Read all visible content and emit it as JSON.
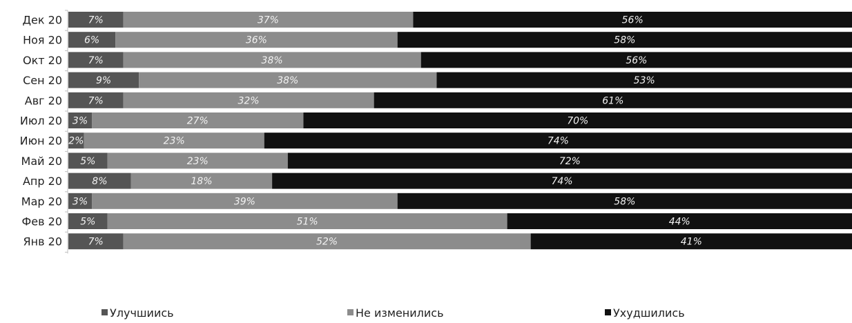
{
  "chart_data": {
    "type": "bar",
    "orientation": "horizontal",
    "stacked": "percent",
    "title": "",
    "xlabel": "",
    "ylabel": "",
    "xlim": [
      0,
      100
    ],
    "grid": false,
    "legend_position": "bottom",
    "categories": [
      "Дек 20",
      "Ноя 20",
      "Окт 20",
      "Сен 20",
      "Авг 20",
      "Июл 20",
      "Июн 20",
      "Май 20",
      "Апр 20",
      "Мар 20",
      "Фев 20",
      "Янв 20"
    ],
    "series": [
      {
        "name": "Улучшиись",
        "color": "#555555",
        "values": [
          7,
          6,
          7,
          9,
          7,
          3,
          2,
          5,
          8,
          3,
          5,
          7
        ],
        "labels": [
          "7%",
          "6%",
          "7%",
          "9%",
          "7%",
          "3%",
          "2%",
          "5%",
          "8%",
          "3%",
          "5%",
          "7%"
        ]
      },
      {
        "name": "Не изменились",
        "color": "#8c8c8c",
        "values": [
          37,
          36,
          38,
          38,
          32,
          27,
          23,
          23,
          18,
          39,
          51,
          52
        ],
        "labels": [
          "37%",
          "36%",
          "38%",
          "38%",
          "32%",
          "27%",
          "23%",
          "23%",
          "18%",
          "39%",
          "51%",
          "52%"
        ]
      },
      {
        "name": "Ухудшились",
        "color": "#111111",
        "values": [
          56,
          58,
          56,
          53,
          61,
          70,
          74,
          72,
          74,
          58,
          44,
          41
        ],
        "labels": [
          "56%",
          "58%",
          "56%",
          "53%",
          "61%",
          "70%",
          "74%",
          "72%",
          "74%",
          "58%",
          "44%",
          "41%"
        ]
      }
    ]
  }
}
